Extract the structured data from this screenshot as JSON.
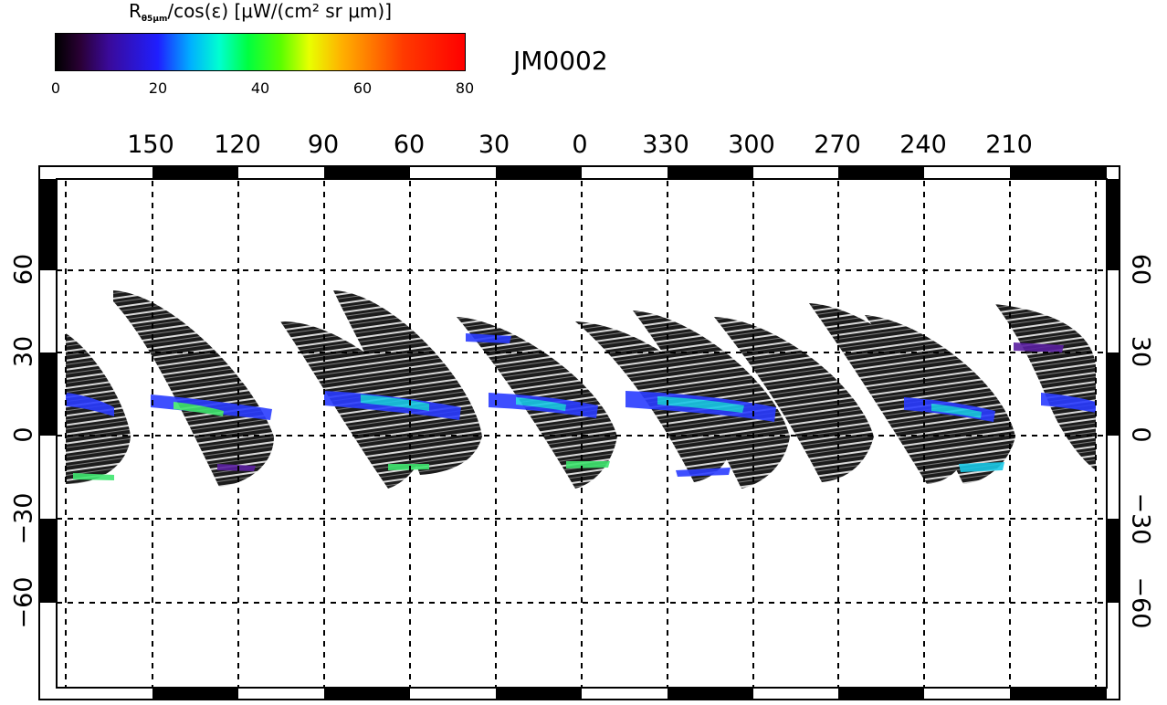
{
  "colorbar": {
    "title_main": "R",
    "title_sub": "θ5μm",
    "title_rest": "/cos(ε) [μW/(cm² sr μm)]",
    "ticks": [
      "0",
      "20",
      "40",
      "60",
      "80"
    ],
    "range": [
      0,
      80
    ],
    "colormap": "rainbow (black-purple-blue-cyan-green-yellow-orange-red)"
  },
  "map_code": "JM0002",
  "longitude_labels": [
    "150",
    "120",
    "90",
    "60",
    "30",
    "0",
    "330",
    "300",
    "270",
    "240",
    "210"
  ],
  "latitude_labels": [
    "60",
    "30",
    "0",
    "−30",
    "−60"
  ],
  "map": {
    "projection": "cylindrical",
    "longitude_grid_step": 30,
    "latitude_grid_step": 30,
    "gridlines": "dashed black",
    "frame": "alternating black/white 30° bars",
    "features": "swaths of observations with bright band near 0-15° latitude",
    "colors": {
      "swath_bg": "#1a1a1a",
      "band_blue": "#2a3cff",
      "band_cyan": "#19c8e6",
      "band_green": "#3fe56f",
      "band_purple": "#5a1fa0"
    }
  }
}
